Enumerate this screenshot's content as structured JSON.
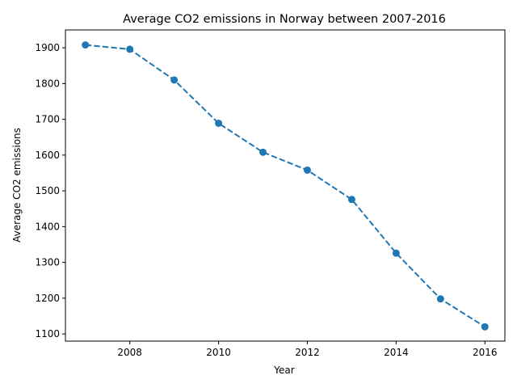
{
  "chart_data": {
    "type": "line",
    "title": "Average CO2 emissions in Norway between 2007-2016",
    "xlabel": "Year",
    "ylabel": "Average CO2 emissions",
    "x": [
      2007,
      2008,
      2009,
      2010,
      2011,
      2012,
      2013,
      2014,
      2015,
      2016
    ],
    "series": [
      {
        "values": [
          1908,
          1896,
          1810,
          1689,
          1608,
          1558,
          1476,
          1326,
          1198,
          1120
        ],
        "color": "#1f77b4",
        "line_style": "dashed",
        "marker": "circle"
      }
    ],
    "xlim": [
      2006.55,
      2016.45
    ],
    "ylim": [
      1080,
      1950
    ],
    "xticks": [
      2008,
      2010,
      2012,
      2014,
      2016
    ],
    "yticks": [
      1100,
      1200,
      1300,
      1400,
      1500,
      1600,
      1700,
      1800,
      1900
    ],
    "grid": false
  }
}
